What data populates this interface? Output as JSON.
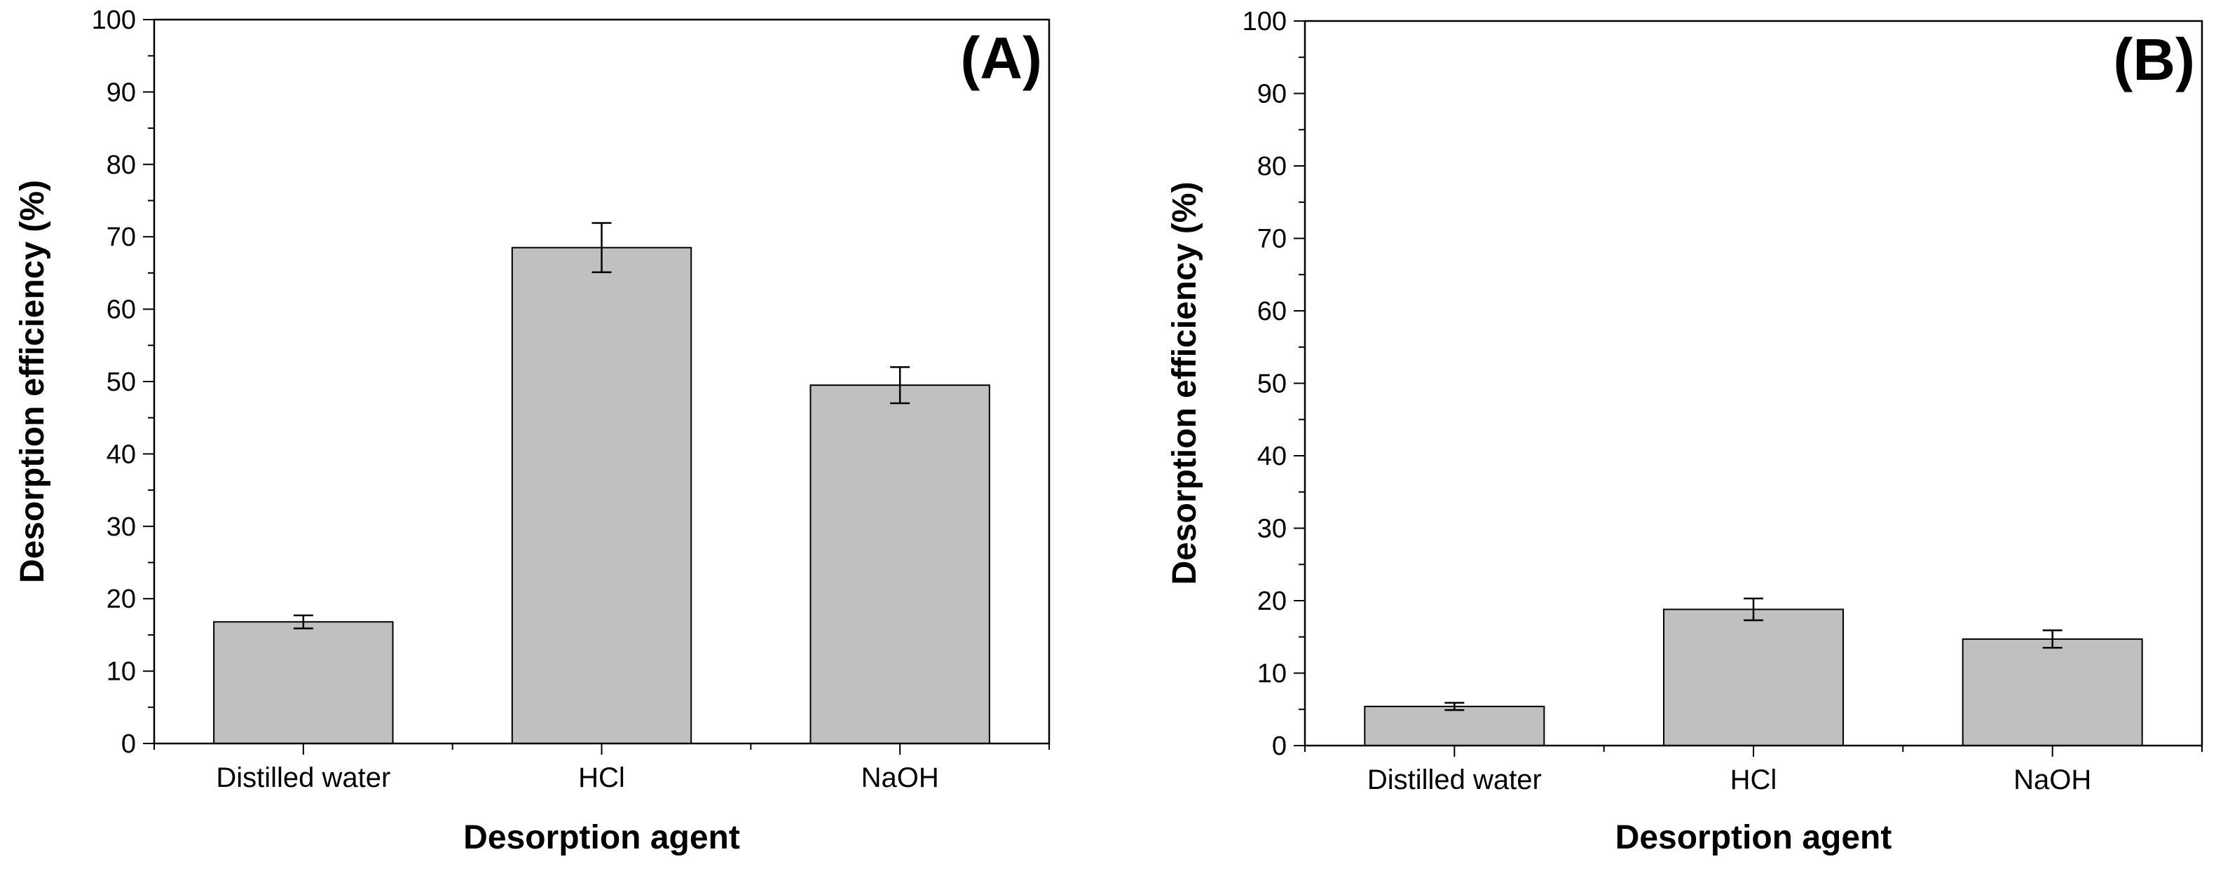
{
  "chart_data": [
    {
      "type": "bar",
      "panel_label": "(A)",
      "categories": [
        "Distilled water",
        "HCl",
        "NaOH"
      ],
      "values": [
        16.8,
        68.5,
        49.5
      ],
      "errors": [
        0.9,
        3.4,
        2.5
      ],
      "xlabel": "Desorption agent",
      "ylabel": "Desorption efficiency (%)",
      "ylim": [
        0,
        100
      ],
      "yticks": [
        0,
        10,
        20,
        30,
        40,
        50,
        60,
        70,
        80,
        90,
        100
      ],
      "bar_color": "#c0c0c0",
      "grid": false
    },
    {
      "type": "bar",
      "panel_label": "(B)",
      "categories": [
        "Distilled water",
        "HCl",
        "NaOH"
      ],
      "values": [
        5.4,
        18.8,
        14.7
      ],
      "errors": [
        0.5,
        1.5,
        1.2
      ],
      "xlabel": "Desorption agent",
      "ylabel": "Desorption efficiency (%)",
      "ylim": [
        0,
        100
      ],
      "yticks": [
        0,
        10,
        20,
        30,
        40,
        50,
        60,
        70,
        80,
        90,
        100
      ],
      "bar_color": "#c0c0c0",
      "grid": false
    }
  ]
}
